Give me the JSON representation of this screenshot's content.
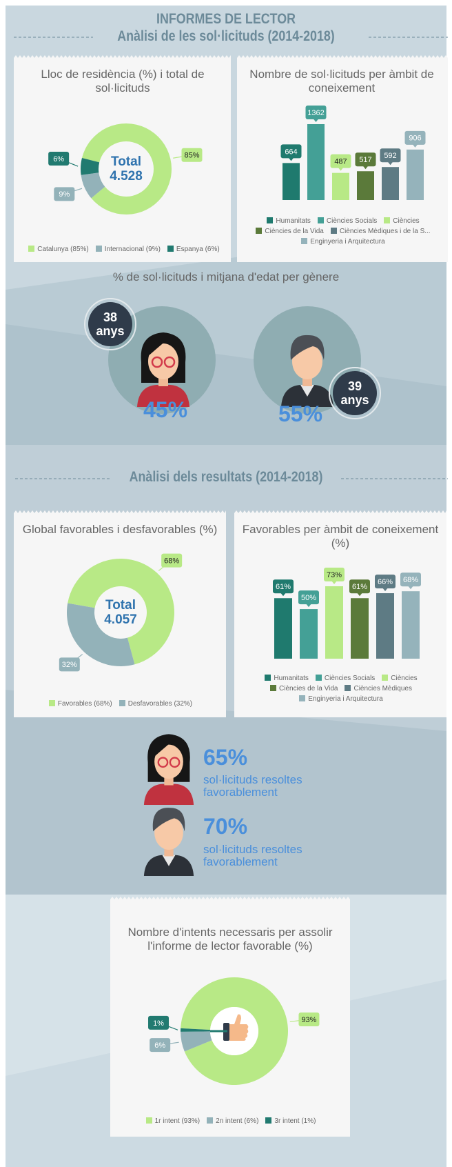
{
  "header": {
    "title": "INFORMES DE LECTOR",
    "subtitle": "Anàlisi de les sol·licituds (2014-2018)"
  },
  "gender": {
    "title": "% de sol·licituds i mitjana d'edat per gènere",
    "items": [
      {
        "age": "38",
        "unit": "anys",
        "share": "45%"
      },
      {
        "age": "39",
        "unit": "anys",
        "share": "55%"
      }
    ]
  },
  "section2": {
    "title": "Anàlisi dels resultats (2014-2018)"
  },
  "results": [
    {
      "share": "65%",
      "text": [
        "sol·licituds resoltes",
        "favorablement"
      ]
    },
    {
      "share": "70%",
      "text": [
        "sol·licituds resoltes",
        "favorablement"
      ]
    }
  ],
  "chart_data": [
    {
      "type": "pie",
      "title": "Lloc de residència (%) i total de sol·licituds",
      "center_text": [
        "Total",
        "4.528"
      ],
      "categories": [
        "Catalunya (85%)",
        "Internacional (9%)",
        "Espanya (6%)"
      ],
      "values": [
        85,
        9,
        6
      ],
      "value_labels": [
        "85%",
        "9%",
        "6%"
      ],
      "colors": [
        "#b8e986",
        "#93b2b9",
        "#217a70"
      ]
    },
    {
      "type": "bar",
      "title": "Nombre de sol·licituds per àmbit de coneixement",
      "categories": [
        "Humanitats",
        "Ciències Socials",
        "Ciències",
        "Ciències de la Vida",
        "Ciències Mèdiques i de la S...",
        "Enginyeria i Arquitectura"
      ],
      "values": [
        664,
        1362,
        487,
        517,
        592,
        906
      ],
      "colors": [
        "#1f7a6e",
        "#44a096",
        "#b8e986",
        "#5b7a3a",
        "#5e7b84",
        "#95b3bb"
      ]
    },
    {
      "type": "pie",
      "title": "Global favorables i desfavorables (%)",
      "center_text": [
        "Total",
        "4.057"
      ],
      "categories": [
        "Favorables (68%)",
        "Desfavorables (32%)"
      ],
      "values": [
        68,
        32
      ],
      "value_labels": [
        "68%",
        "32%"
      ],
      "colors": [
        "#b8e986",
        "#93b2b9"
      ]
    },
    {
      "type": "bar",
      "title": "Favorables per àmbit de coneixement (%)",
      "categories": [
        "Humanitats",
        "Ciències Socials",
        "Ciències",
        "Ciències de la Vida",
        "Ciències Mèdiques",
        "Enginyeria i Arquitectura"
      ],
      "values": [
        61,
        50,
        73,
        61,
        66,
        68
      ],
      "value_labels": [
        "61%",
        "50%",
        "73%",
        "61%",
        "66%",
        "68%"
      ],
      "colors": [
        "#1f7a6e",
        "#44a096",
        "#b8e986",
        "#5b7a3a",
        "#5e7b84",
        "#95b3bb"
      ]
    },
    {
      "type": "pie",
      "title": "Nombre d'intents necessaris per assolir l'informe de lector favorable (%)",
      "categories": [
        "1r intent (93%)",
        "2n intent (6%)",
        "3r intent (1%)"
      ],
      "values": [
        93,
        6,
        1
      ],
      "value_labels": [
        "93%",
        "6%",
        "1%"
      ],
      "colors": [
        "#b8e986",
        "#93b2b9",
        "#217a70"
      ]
    }
  ]
}
